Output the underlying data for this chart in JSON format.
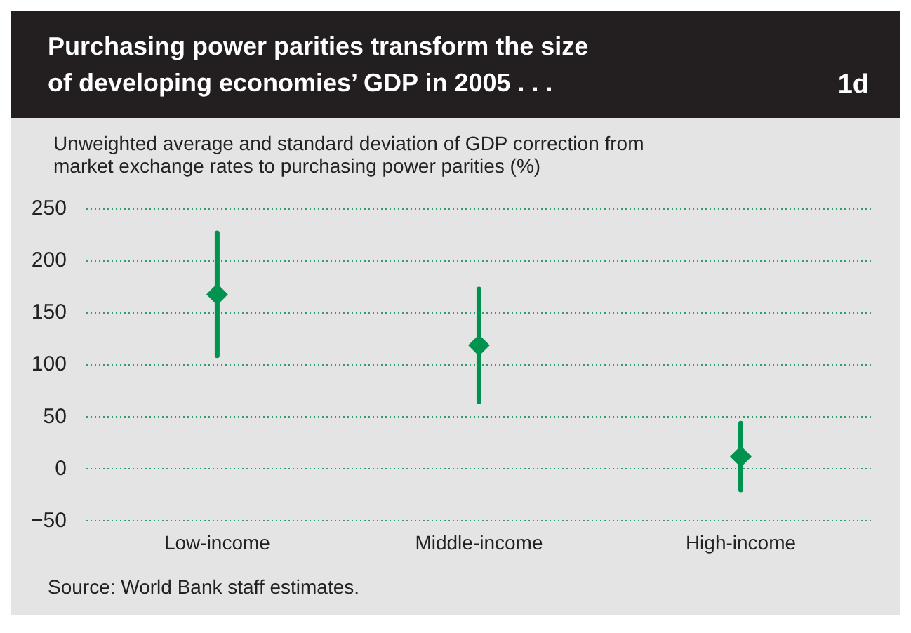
{
  "chart_data": {
    "type": "scatter",
    "title": "Purchasing power parities transform the size of developing economies’ GDP in 2005 . . .",
    "subtitle": "Unweighted average and standard deviation of GDP correction from market exchange rates to purchasing power parities (%)",
    "annotations": [
      "1d",
      "Source: World Bank staff estimates."
    ],
    "categories": [
      "Low-income",
      "Middle-income",
      "High-income"
    ],
    "series": [
      {
        "color": "#00934f",
        "values": [
          168,
          119,
          12
        ],
        "errors": [
          59,
          54,
          32
        ]
      }
    ],
    "ylim": [
      -50,
      250
    ],
    "yticks": [
      -50,
      0,
      50,
      100,
      150,
      200,
      250
    ],
    "grid": "y",
    "marker": "diamond",
    "legend": false
  }
}
